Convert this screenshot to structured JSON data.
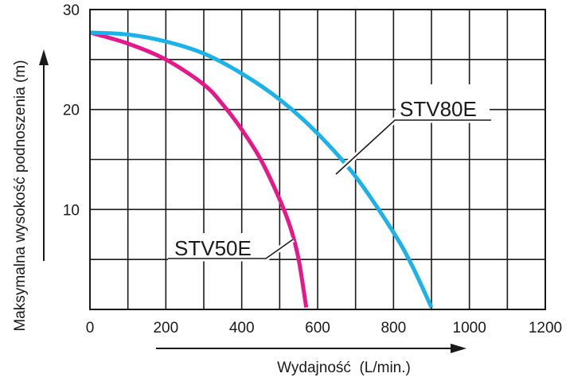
{
  "chart_data": {
    "type": "line",
    "xlabel": "Wydajność  (L/min.)",
    "ylabel": "Maksymalna wysokość podnoszenia (m)",
    "xlim": [
      0,
      1200
    ],
    "ylim": [
      0,
      30
    ],
    "x_ticks": [
      "0",
      "200",
      "400",
      "600",
      "800",
      "1000",
      "1200"
    ],
    "y_ticks": [
      "10",
      "20",
      "30"
    ],
    "grid": true,
    "series": [
      {
        "name": "STV50E",
        "color": "#e6178a",
        "points": [
          [
            0,
            27.7
          ],
          [
            100,
            26.6
          ],
          [
            200,
            25.0
          ],
          [
            300,
            22.5
          ],
          [
            350,
            20.5
          ],
          [
            400,
            18.0
          ],
          [
            450,
            15.0
          ],
          [
            500,
            11.0
          ],
          [
            530,
            8.0
          ],
          [
            550,
            5.0
          ],
          [
            570,
            0.2
          ]
        ]
      },
      {
        "name": "STV80E",
        "color": "#1ab2e8",
        "points": [
          [
            0,
            27.7
          ],
          [
            100,
            27.5
          ],
          [
            200,
            26.8
          ],
          [
            300,
            25.6
          ],
          [
            400,
            23.6
          ],
          [
            500,
            21.0
          ],
          [
            600,
            17.6
          ],
          [
            700,
            13.3
          ],
          [
            800,
            7.7
          ],
          [
            850,
            4.3
          ],
          [
            900,
            0.2
          ]
        ]
      }
    ]
  }
}
